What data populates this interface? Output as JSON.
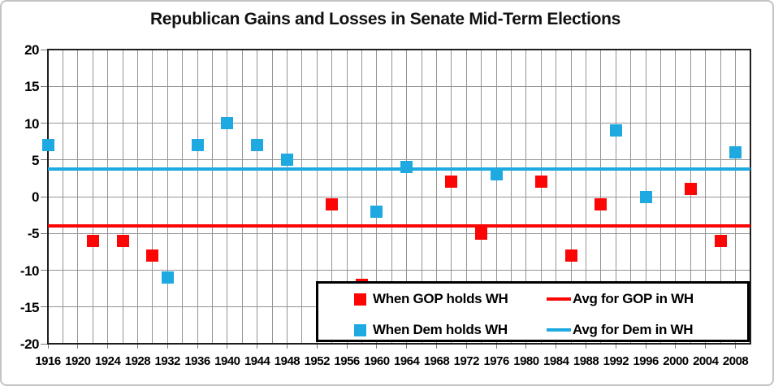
{
  "title": "Republican Gains and Losses in Senate Mid-Term Elections",
  "colors": {
    "gop": "#fb0505",
    "dem": "#1ea9e0",
    "gridline": "#949494",
    "plot_border": "#1f1f1f"
  },
  "chart_data": {
    "type": "scatter",
    "title": "Republican Gains and Losses in Senate Mid-Term Elections",
    "xlabel": "",
    "ylabel": "",
    "x_axis": {
      "min": 1916,
      "max": 2010,
      "label_step": 4,
      "grid_step": 2,
      "tick_labels": [
        "1916",
        "1920",
        "1924",
        "1928",
        "1932",
        "1936",
        "1940",
        "1944",
        "1948",
        "1952",
        "1956",
        "1960",
        "1964",
        "1968",
        "1972",
        "1976",
        "1980",
        "1984",
        "1988",
        "1992",
        "1996",
        "2000",
        "2004",
        "2008"
      ]
    },
    "y_axis": {
      "min": -20,
      "max": 20,
      "label_step": 5,
      "tick_labels": [
        "20",
        "15",
        "10",
        "5",
        "0",
        "-5",
        "-10",
        "-15",
        "-20"
      ]
    },
    "grid": true,
    "legend_position": "bottom-right-inside",
    "series": [
      {
        "name": "When GOP holds WH",
        "marker": "square",
        "color_key": "gop",
        "points": [
          {
            "x": 1922,
            "y": -6
          },
          {
            "x": 1926,
            "y": -6
          },
          {
            "x": 1930,
            "y": -8
          },
          {
            "x": 1954,
            "y": -1
          },
          {
            "x": 1958,
            "y": -12
          },
          {
            "x": 1970,
            "y": 2
          },
          {
            "x": 1974,
            "y": -5
          },
          {
            "x": 1982,
            "y": 2
          },
          {
            "x": 1986,
            "y": -8
          },
          {
            "x": 1990,
            "y": -1
          },
          {
            "x": 2002,
            "y": 1
          },
          {
            "x": 2006,
            "y": -6
          }
        ]
      },
      {
        "name": "When Dem holds WH",
        "marker": "square",
        "color_key": "dem",
        "points": [
          {
            "x": 1916,
            "y": 7
          },
          {
            "x": 1932,
            "y": -11
          },
          {
            "x": 1936,
            "y": 7
          },
          {
            "x": 1940,
            "y": 10
          },
          {
            "x": 1944,
            "y": 7
          },
          {
            "x": 1948,
            "y": 5
          },
          {
            "x": 1960,
            "y": -2
          },
          {
            "x": 1964,
            "y": 4
          },
          {
            "x": 1976,
            "y": 3
          },
          {
            "x": 1992,
            "y": 9
          },
          {
            "x": 1996,
            "y": 0
          },
          {
            "x": 2008,
            "y": 6
          }
        ]
      }
    ],
    "avg_lines": [
      {
        "name": "Avg for GOP in WH",
        "color_key": "gop",
        "value": -4.0
      },
      {
        "name": "Avg for Dem in WH",
        "color_key": "dem",
        "value": 3.75
      }
    ]
  },
  "legend": {
    "gop_points_label": "When GOP holds WH",
    "dem_points_label": "When Dem holds WH",
    "gop_avg_label": "Avg for GOP in WH",
    "dem_avg_label": "Avg for Dem in WH"
  }
}
